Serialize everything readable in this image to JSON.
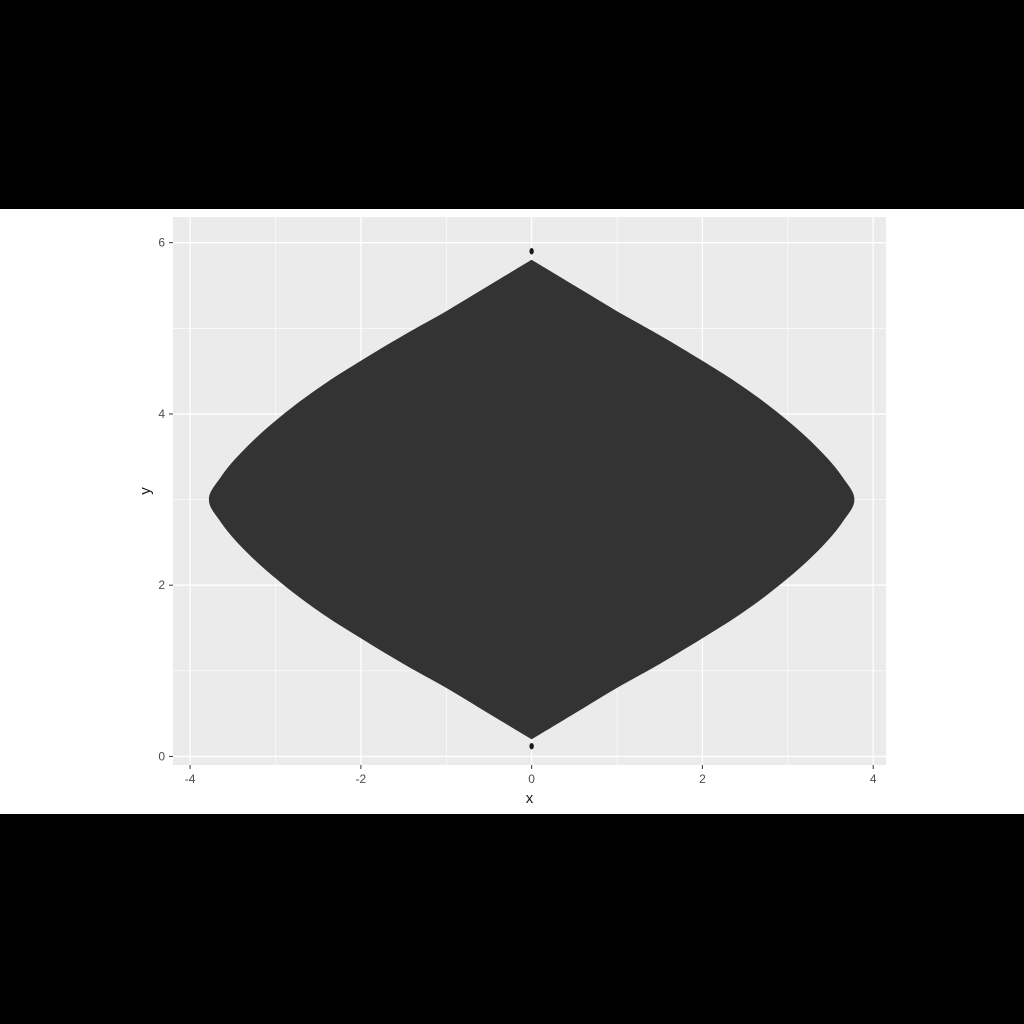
{
  "chart_data": {
    "type": "area",
    "shape": "symmetric lens (filled polygon)",
    "xlabel": "x",
    "ylabel": "y",
    "xlim": [
      -4.2,
      4.15
    ],
    "ylim": [
      -0.1,
      6.3
    ],
    "x_ticks": [
      -4,
      -2,
      0,
      2,
      4
    ],
    "x_tick_labels": [
      "-4",
      "-2",
      "0",
      "2",
      "4"
    ],
    "y_ticks": [
      0,
      2,
      4,
      6
    ],
    "y_tick_labels": [
      "0",
      "2",
      "4",
      "6"
    ],
    "grid": true,
    "panel_background": "#ebebeb",
    "fill_color": "#333333",
    "outline": [
      {
        "x": 0.0,
        "y": 5.8
      },
      {
        "x": 0.5,
        "y": 5.5
      },
      {
        "x": 1.0,
        "y": 5.2
      },
      {
        "x": 1.5,
        "y": 4.92
      },
      {
        "x": 2.0,
        "y": 4.62
      },
      {
        "x": 2.5,
        "y": 4.3
      },
      {
        "x": 3.0,
        "y": 3.92
      },
      {
        "x": 3.4,
        "y": 3.55
      },
      {
        "x": 3.65,
        "y": 3.25
      },
      {
        "x": 3.78,
        "y": 3.0
      },
      {
        "x": 3.65,
        "y": 2.75
      },
      {
        "x": 3.4,
        "y": 2.45
      },
      {
        "x": 3.0,
        "y": 2.08
      },
      {
        "x": 2.5,
        "y": 1.7
      },
      {
        "x": 2.0,
        "y": 1.38
      },
      {
        "x": 1.5,
        "y": 1.08
      },
      {
        "x": 1.0,
        "y": 0.8
      },
      {
        "x": 0.5,
        "y": 0.5
      },
      {
        "x": 0.0,
        "y": 0.2
      },
      {
        "x": -0.5,
        "y": 0.5
      },
      {
        "x": -1.0,
        "y": 0.8
      },
      {
        "x": -1.5,
        "y": 1.08
      },
      {
        "x": -2.0,
        "y": 1.38
      },
      {
        "x": -2.5,
        "y": 1.7
      },
      {
        "x": -3.0,
        "y": 2.08
      },
      {
        "x": -3.4,
        "y": 2.45
      },
      {
        "x": -3.65,
        "y": 2.75
      },
      {
        "x": -3.78,
        "y": 3.0
      },
      {
        "x": -3.65,
        "y": 3.25
      },
      {
        "x": -3.4,
        "y": 3.55
      },
      {
        "x": -3.0,
        "y": 3.92
      },
      {
        "x": -2.5,
        "y": 4.3
      },
      {
        "x": -2.0,
        "y": 4.62
      },
      {
        "x": -1.5,
        "y": 4.92
      },
      {
        "x": -1.0,
        "y": 5.2
      },
      {
        "x": -0.5,
        "y": 5.5
      }
    ],
    "points": [
      {
        "x": 0.0,
        "y": 5.9
      },
      {
        "x": 0.0,
        "y": 0.12
      }
    ]
  }
}
